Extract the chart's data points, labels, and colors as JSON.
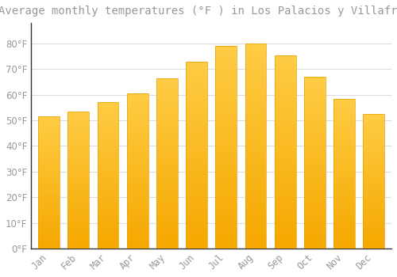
{
  "title": "Average monthly temperatures (°F ) in Los Palacios y Villafranca",
  "months": [
    "Jan",
    "Feb",
    "Mar",
    "Apr",
    "May",
    "Jun",
    "Jul",
    "Aug",
    "Sep",
    "Oct",
    "Nov",
    "Dec"
  ],
  "values": [
    51.5,
    53.5,
    57.0,
    60.5,
    66.5,
    73.0,
    79.0,
    80.0,
    75.5,
    67.0,
    58.5,
    52.5
  ],
  "bar_color_top": "#FFCC44",
  "bar_color_bottom": "#F5A800",
  "bar_edge_color": "#E8A000",
  "background_color": "#FFFFFF",
  "grid_color": "#DDDDDD",
  "text_color": "#999999",
  "spine_color": "#333333",
  "ylim": [
    0,
    88
  ],
  "yticks": [
    0,
    10,
    20,
    30,
    40,
    50,
    60,
    70,
    80
  ],
  "title_fontsize": 10,
  "tick_fontsize": 8.5,
  "bar_width": 0.72
}
